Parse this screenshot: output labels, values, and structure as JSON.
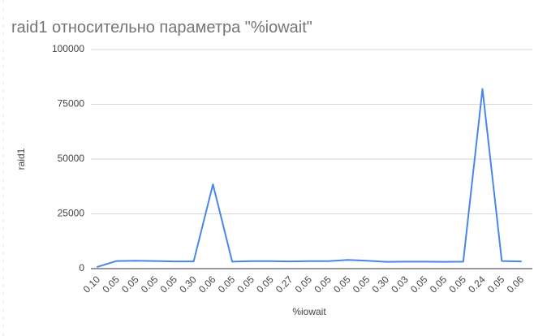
{
  "chart_data": {
    "type": "line",
    "title": "raid1 относительно параметра \"%iowait\"",
    "xlabel": "%iowait",
    "ylabel": "raid1",
    "categories": [
      "0.10",
      "0.05",
      "0.05",
      "0.05",
      "0.05",
      "0.30",
      "0.06",
      "0.05",
      "0.05",
      "0.05",
      "0.27",
      "0.05",
      "0.05",
      "0.05",
      "0.05",
      "0.30",
      "0.03",
      "0.05",
      "0.05",
      "0.05",
      "0.24",
      "0.05",
      "0.06"
    ],
    "series": [
      {
        "name": "raid1",
        "values": [
          800,
          3500,
          3600,
          3500,
          3300,
          3300,
          38500,
          3200,
          3400,
          3400,
          3300,
          3400,
          3400,
          4000,
          3600,
          3100,
          3200,
          3200,
          3100,
          3200,
          82000,
          3500,
          3300
        ]
      }
    ],
    "ylim": [
      0,
      100000
    ],
    "yticks": [
      0,
      25000,
      50000,
      75000,
      100000
    ],
    "ytick_labels": [
      "0",
      "25000",
      "50000",
      "75000",
      "100000"
    ],
    "grid": true,
    "line_color": "#4a86e8"
  }
}
